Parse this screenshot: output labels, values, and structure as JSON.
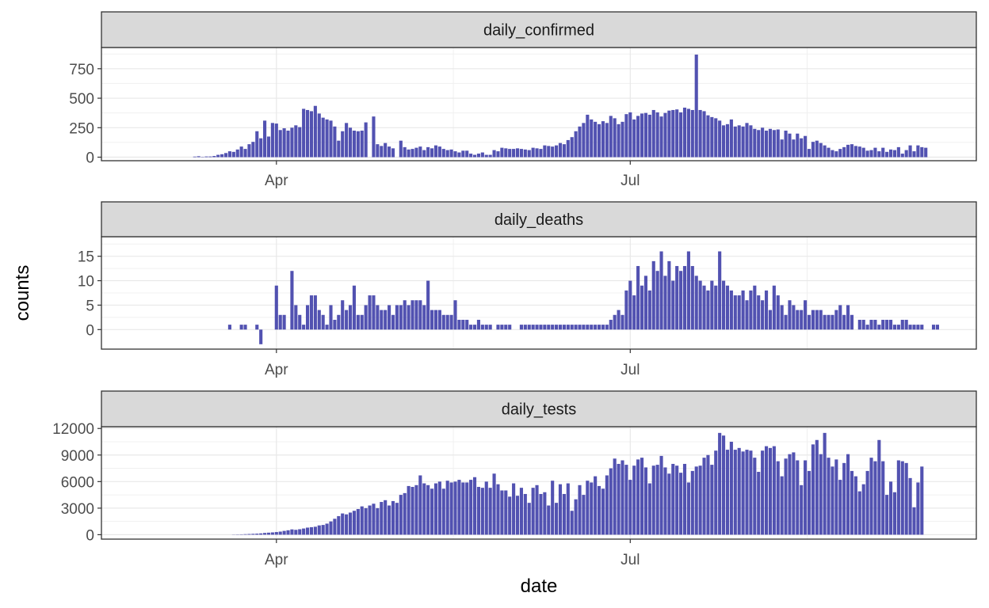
{
  "chart_data": {
    "type": "bar",
    "xlabel": "date",
    "ylabel": "counts",
    "x_tick_labels": [
      "Apr",
      "Jul"
    ],
    "x_tick_days": [
      0,
      91
    ],
    "xlim_days": [
      -45,
      180
    ],
    "bar_color": "#3F3FA8",
    "grid": true,
    "panels": [
      {
        "name": "daily_confirmed",
        "ylim": [
          -30,
          930
        ],
        "yticks": [
          0,
          250,
          500,
          750
        ],
        "first_day": -21,
        "values": [
          5,
          8,
          3,
          6,
          6,
          10,
          20,
          25,
          35,
          50,
          45,
          65,
          90,
          70,
          110,
          130,
          220,
          160,
          310,
          175,
          290,
          285,
          230,
          245,
          225,
          250,
          270,
          255,
          410,
          400,
          390,
          435,
          370,
          335,
          320,
          310,
          260,
          140,
          220,
          290,
          250,
          225,
          220,
          225,
          295,
          0,
          345,
          110,
          95,
          120,
          90,
          75,
          0,
          140,
          85,
          65,
          70,
          80,
          90,
          60,
          85,
          75,
          100,
          90,
          70,
          60,
          65,
          50,
          40,
          55,
          55,
          30,
          20,
          30,
          40,
          20,
          20,
          60,
          50,
          80,
          75,
          70,
          70,
          75,
          70,
          65,
          60,
          80,
          75,
          70,
          100,
          95,
          90,
          100,
          120,
          110,
          145,
          170,
          220,
          260,
          290,
          360,
          320,
          300,
          280,
          305,
          290,
          350,
          330,
          280,
          300,
          365,
          380,
          320,
          350,
          370,
          375,
          360,
          400,
          380,
          345,
          375,
          395,
          400,
          405,
          380,
          420,
          410,
          400,
          870,
          400,
          390,
          355,
          340,
          330,
          310,
          270,
          280,
          320,
          260,
          270,
          260,
          290,
          270,
          240,
          230,
          250,
          225,
          240,
          230,
          235,
          150,
          225,
          200,
          150,
          200,
          160,
          180,
          70,
          130,
          140,
          120,
          100,
          80,
          60,
          50,
          70,
          85,
          105,
          110,
          95,
          90,
          80,
          55,
          60,
          80,
          50,
          80,
          45,
          65,
          60,
          85,
          30,
          60,
          100,
          50,
          100,
          85,
          80
        ],
        "reflect": false
      },
      {
        "name": "daily_deaths",
        "ylim": [
          -4,
          19
        ],
        "yticks": [
          0,
          5,
          10,
          15
        ],
        "first_day": -12,
        "values": [
          1,
          0,
          0,
          1,
          1,
          0,
          0,
          1,
          -3,
          0,
          0,
          0,
          9,
          3,
          3,
          0,
          12,
          5,
          3,
          1,
          5,
          7,
          7,
          4,
          3,
          1,
          5,
          2,
          3,
          6,
          4,
          5,
          9,
          3,
          3,
          5,
          7,
          7,
          5,
          4,
          4,
          5,
          3,
          5,
          5,
          6,
          5,
          6,
          6,
          6,
          5,
          10,
          4,
          4,
          4,
          3,
          3,
          3,
          6,
          2,
          2,
          2,
          1,
          1,
          2,
          1,
          1,
          1,
          0,
          1,
          1,
          1,
          1,
          0,
          0,
          1,
          1,
          1,
          1,
          1,
          1,
          1,
          1,
          1,
          1,
          1,
          1,
          1,
          1,
          1,
          1,
          1,
          1,
          1,
          1,
          1,
          1,
          1,
          2,
          3,
          4,
          3,
          8,
          10,
          7,
          13,
          9,
          11,
          8,
          14,
          12,
          16,
          11,
          14,
          10,
          13,
          12,
          13,
          16,
          13,
          11,
          10,
          9,
          8,
          10,
          9,
          16,
          10,
          9,
          8,
          7,
          7,
          8,
          6,
          8,
          9,
          7,
          6,
          8,
          4,
          9,
          7,
          5,
          3,
          6,
          5,
          4,
          4,
          6,
          3,
          4,
          4,
          4,
          3,
          3,
          3,
          4,
          5,
          3,
          5,
          3,
          0,
          2,
          2,
          1,
          2,
          2,
          1,
          2,
          2,
          2,
          1,
          1,
          2,
          2,
          1,
          1,
          1,
          1,
          0,
          0,
          1,
          1
        ],
        "reflect": true
      },
      {
        "name": "daily_tests",
        "ylim": [
          -500,
          12200
        ],
        "yticks": [
          0,
          3000,
          6000,
          9000,
          12000
        ],
        "first_day": -15,
        "values": [
          0,
          0,
          0,
          0,
          20,
          30,
          40,
          60,
          80,
          100,
          120,
          150,
          200,
          230,
          260,
          300,
          350,
          430,
          500,
          600,
          550,
          620,
          700,
          800,
          850,
          900,
          1050,
          1100,
          1250,
          1500,
          1800,
          2100,
          2400,
          2300,
          2500,
          2700,
          2900,
          3200,
          3000,
          3300,
          3500,
          3000,
          3700,
          3900,
          3300,
          3800,
          3600,
          4500,
          4700,
          5500,
          5400,
          5600,
          6700,
          5800,
          5600,
          5200,
          5800,
          6000,
          5200,
          6100,
          5900,
          6000,
          6200,
          5900,
          5900,
          6200,
          6500,
          5400,
          5300,
          6000,
          5300,
          6900,
          5700,
          5000,
          5000,
          4300,
          5800,
          4400,
          5300,
          4600,
          3600,
          5300,
          5600,
          4600,
          4800,
          3300,
          6100,
          3600,
          5700,
          4600,
          5800,
          2700,
          4000,
          5600,
          4500,
          6100,
          5900,
          6600,
          5500,
          5200,
          6700,
          7500,
          8600,
          8000,
          8400,
          7900,
          6200,
          7800,
          8500,
          8700,
          7600,
          5800,
          7800,
          7900,
          8900,
          7600,
          6900,
          8000,
          7800,
          7000,
          8000,
          5900,
          7200,
          7700,
          7800,
          8700,
          9000,
          7900,
          9500,
          11500,
          11200,
          9600,
          10500,
          9600,
          9800,
          9400,
          9600,
          9500,
          8700,
          7100,
          9500,
          10000,
          9800,
          10000,
          8300,
          6600,
          8600,
          9100,
          9300,
          8400,
          5600,
          8400,
          7200,
          10200,
          10700,
          9100,
          11500,
          8700,
          7700,
          8500,
          6200,
          8100,
          9100,
          7200,
          6600,
          4900,
          5700,
          7200,
          8700,
          8300,
          10700,
          8300,
          4500,
          6000,
          4800,
          8400,
          8300,
          8100,
          6400,
          3100,
          5900,
          7700
        ],
        "reflect": false
      }
    ]
  }
}
